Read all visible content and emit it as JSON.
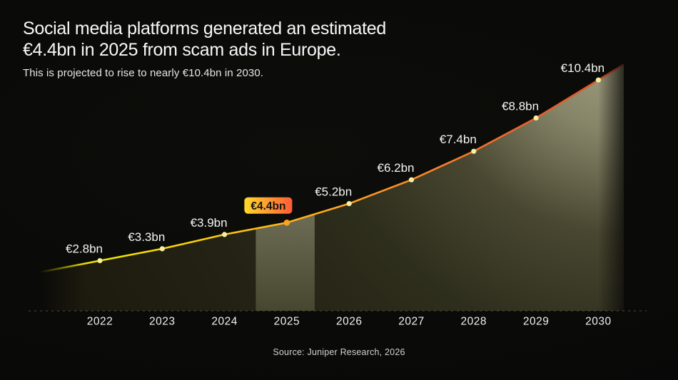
{
  "page": {
    "background": "#0a0a08"
  },
  "header": {
    "title_line1": "Social media platforms generated an estimated",
    "title_line2": "€4.4bn in 2025 from scam ads in Europe.",
    "subtitle": "This is projected to rise to nearly €10.4bn in 2030."
  },
  "footer": {
    "source": "Source: Juniper Research, 2026"
  },
  "chart_data": {
    "type": "area",
    "title": "Social media platforms generated an estimated €4.4bn in 2025 from scam ads in Europe.",
    "subtitle": "This is projected to rise to nearly €10.4bn in 2030.",
    "source": "Source: Juniper Research, 2026",
    "categories": [
      "2022",
      "2023",
      "2024",
      "2025",
      "2026",
      "2027",
      "2028",
      "2029",
      "2030"
    ],
    "values": [
      2.8,
      3.3,
      3.9,
      4.4,
      5.2,
      6.2,
      7.4,
      8.8,
      10.4
    ],
    "point_labels": [
      "€2.8bn",
      "€3.3bn",
      "€3.9bn",
      "€4.4bn",
      "€5.2bn",
      "€6.2bn",
      "€7.4bn",
      "€8.8bn",
      "€10.4bn"
    ],
    "unit": "billion EUR per year",
    "highlight_index": 3,
    "highlight_label": "€4.4bn",
    "ylim": [
      0,
      11
    ],
    "grid": false,
    "legend": false,
    "xaxis_style": "dashed",
    "colors": {
      "background": "#0a0a08",
      "line_gradient": [
        "#dcd404",
        "#f2e202",
        "#fccb0e",
        "#ffab1d",
        "#fb8b28",
        "#ec642c",
        "#dc4f2b"
      ],
      "area_gradient": [
        "#aeaa8c",
        "#8c8a6c",
        "#4c4a33",
        "#30301e",
        "#262415",
        "#1e1c0e"
      ],
      "band_gradient": [
        "#74735c",
        "#47462f"
      ],
      "dot": "#f5efa0",
      "highlight_dot": "#ffa11f",
      "badge_gradient": [
        "#ffd92c",
        "#ff5c36"
      ],
      "badge_text": "#141414",
      "label_text": "#f4f4f1",
      "axis_label_text": "#f1f0ed",
      "axis_line": "#55554d"
    }
  }
}
